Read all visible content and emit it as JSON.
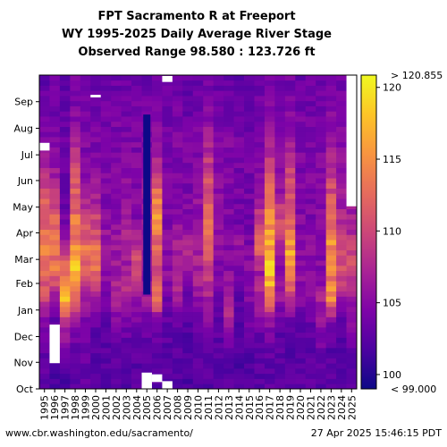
{
  "chart_data": {
    "type": "heatmap",
    "title": "FPT Sacramento R at Freeport",
    "subtitle_line1": "WY 1995-2025 Daily Average River Stage",
    "subtitle_line2": "Observed Range 98.580 : 123.726 ft",
    "x": [
      "1995",
      "1996",
      "1997",
      "1998",
      "1999",
      "2000",
      "2001",
      "2002",
      "2003",
      "2004",
      "2005",
      "2006",
      "2007",
      "2008",
      "2009",
      "2010",
      "2011",
      "2012",
      "2013",
      "2014",
      "2015",
      "2016",
      "2017",
      "2018",
      "2019",
      "2020",
      "2021",
      "2022",
      "2023",
      "2024",
      "2025"
    ],
    "y_months": [
      "Oct",
      "Nov",
      "Dec",
      "Jan",
      "Feb",
      "Mar",
      "Apr",
      "May",
      "Jun",
      "Jul",
      "Aug",
      "Sep"
    ],
    "colorbar": {
      "range": [
        99.0,
        120.855
      ],
      "ticks": [
        100,
        105,
        110,
        115,
        120
      ],
      "over_label": "> 120.855",
      "under_label": "< 99.000"
    },
    "monthly_stage": {
      "1995": [
        102.5,
        103.0,
        104.5,
        110.0,
        112.5,
        113.5,
        112.0,
        110.5,
        107.0,
        105.0,
        104.0,
        103.0
      ],
      "1996": [
        102.0,
        102.5,
        103.0,
        106.0,
        113.0,
        113.5,
        111.5,
        108.5,
        106.0,
        104.5,
        104.0,
        103.5
      ],
      "1997": [
        102.0,
        104.0,
        108.0,
        118.5,
        113.5,
        106.5,
        104.0,
        103.5,
        103.5,
        103.5,
        103.0,
        102.5
      ],
      "1998": [
        102.5,
        103.0,
        106.0,
        112.5,
        117.5,
        114.5,
        113.0,
        111.5,
        109.5,
        107.0,
        105.0,
        104.0
      ],
      "1999": [
        103.0,
        103.5,
        104.0,
        107.0,
        112.5,
        113.0,
        110.0,
        106.5,
        105.0,
        104.5,
        104.0,
        103.5
      ],
      "2000": [
        102.5,
        102.5,
        103.0,
        105.5,
        113.0,
        112.5,
        109.5,
        106.5,
        105.0,
        104.5,
        104.0,
        103.5
      ],
      "2001": [
        102.5,
        102.5,
        103.0,
        104.0,
        106.0,
        107.0,
        105.0,
        104.5,
        104.5,
        104.5,
        104.0,
        103.5
      ],
      "2002": [
        102.5,
        102.5,
        104.0,
        108.0,
        106.5,
        106.5,
        105.0,
        104.5,
        104.5,
        104.5,
        104.0,
        103.5
      ],
      "2003": [
        102.5,
        102.5,
        104.5,
        108.0,
        106.5,
        107.0,
        107.0,
        106.0,
        105.0,
        104.5,
        104.0,
        103.5
      ],
      "2004": [
        102.5,
        102.5,
        104.0,
        106.0,
        111.0,
        108.5,
        105.0,
        104.5,
        104.5,
        104.5,
        104.0,
        103.5
      ],
      "2005": [
        102.5,
        102.5,
        103.5,
        106.5,
        106.0,
        107.5,
        106.0,
        106.5,
        105.5,
        104.5,
        104.0,
        103.5
      ],
      "2006": [
        102.5,
        102.5,
        104.0,
        113.0,
        108.5,
        112.0,
        117.0,
        113.0,
        108.5,
        106.0,
        105.0,
        104.0
      ],
      "2007": [
        102.5,
        102.5,
        103.0,
        104.0,
        105.5,
        105.5,
        104.5,
        104.5,
        104.5,
        104.5,
        104.0,
        103.5
      ],
      "2008": [
        102.5,
        102.5,
        103.0,
        106.5,
        108.0,
        107.0,
        105.0,
        104.5,
        104.5,
        104.5,
        104.0,
        103.5
      ],
      "2009": [
        102.0,
        102.0,
        102.5,
        103.5,
        106.5,
        108.0,
        105.0,
        104.5,
        104.0,
        104.0,
        103.5,
        103.0
      ],
      "2010": [
        102.5,
        102.5,
        103.0,
        106.0,
        107.0,
        107.0,
        106.0,
        105.5,
        105.0,
        104.5,
        104.0,
        103.5
      ],
      "2011": [
        102.5,
        102.5,
        105.0,
        107.0,
        109.0,
        112.0,
        112.5,
        111.0,
        109.5,
        107.0,
        105.0,
        104.0
      ],
      "2012": [
        102.5,
        102.5,
        103.0,
        104.0,
        104.5,
        105.5,
        106.5,
        105.0,
        104.5,
        104.5,
        104.0,
        103.5
      ],
      "2013": [
        102.5,
        102.5,
        107.0,
        107.5,
        105.0,
        104.5,
        104.5,
        104.5,
        104.5,
        104.5,
        104.0,
        103.5
      ],
      "2014": [
        102.0,
        102.0,
        102.5,
        102.5,
        104.5,
        106.0,
        104.0,
        104.0,
        104.0,
        104.0,
        103.5,
        103.0
      ],
      "2015": [
        102.0,
        102.0,
        104.0,
        105.0,
        105.5,
        104.5,
        104.0,
        104.0,
        104.0,
        104.0,
        103.5,
        103.0
      ],
      "2016": [
        102.5,
        102.5,
        104.0,
        107.5,
        106.5,
        111.5,
        109.0,
        106.0,
        105.0,
        104.5,
        104.0,
        103.5
      ],
      "2017": [
        102.5,
        103.0,
        105.5,
        114.0,
        118.0,
        117.0,
        115.0,
        112.0,
        110.0,
        107.0,
        105.0,
        104.0
      ],
      "2018": [
        102.5,
        102.5,
        103.0,
        106.0,
        105.5,
        107.5,
        110.5,
        106.5,
        105.0,
        104.5,
        104.0,
        103.5
      ],
      "2019": [
        102.5,
        102.5,
        103.0,
        109.0,
        114.5,
        116.0,
        112.0,
        110.5,
        109.0,
        106.5,
        105.0,
        104.0
      ],
      "2020": [
        102.5,
        102.5,
        103.0,
        105.0,
        105.5,
        105.0,
        105.0,
        104.5,
        104.5,
        104.5,
        104.0,
        103.5
      ],
      "2021": [
        102.5,
        102.5,
        103.0,
        105.0,
        105.5,
        105.0,
        104.5,
        104.5,
        104.5,
        104.5,
        104.0,
        103.5
      ],
      "2022": [
        102.5,
        103.5,
        106.0,
        107.0,
        105.0,
        105.0,
        105.0,
        104.5,
        104.5,
        104.5,
        104.0,
        103.5
      ],
      "2023": [
        102.5,
        102.5,
        104.5,
        115.0,
        113.5,
        115.0,
        112.5,
        110.5,
        108.5,
        106.5,
        105.0,
        104.0
      ],
      "2024": [
        102.5,
        102.5,
        103.0,
        106.0,
        111.0,
        109.0,
        107.5,
        106.5,
        105.5,
        105.0,
        104.5,
        104.0
      ],
      "2025": [
        102.5,
        103.0,
        105.0,
        106.0,
        110.5,
        109.0,
        107.0,
        106.0
      ]
    },
    "missing_data": [
      {
        "year": "1995",
        "from_day": 278,
        "to_day": 287
      },
      {
        "year": "1996",
        "from_day": 30,
        "to_day": 75
      },
      {
        "year": "2005",
        "from_day": 0,
        "to_day": 19
      },
      {
        "year": "2006",
        "from_day": 8,
        "to_day": 17
      },
      {
        "year": "2007",
        "from_day": 0,
        "to_day": 9
      },
      {
        "year": "2007",
        "from_day": 358,
        "to_day": 365
      },
      {
        "year": "2000",
        "from_day": 340,
        "to_day": 343
      },
      {
        "year": "2025",
        "from_day": 213,
        "to_day": 366
      }
    ],
    "special_bands": [
      {
        "year": "2005",
        "from_day": 110,
        "to_day": 320,
        "value": 98.5
      }
    ]
  },
  "footer": {
    "source": "www.cbr.washington.edu/sacramento/",
    "timestamp": "27 Apr 2025 15:46:15 PDT"
  }
}
